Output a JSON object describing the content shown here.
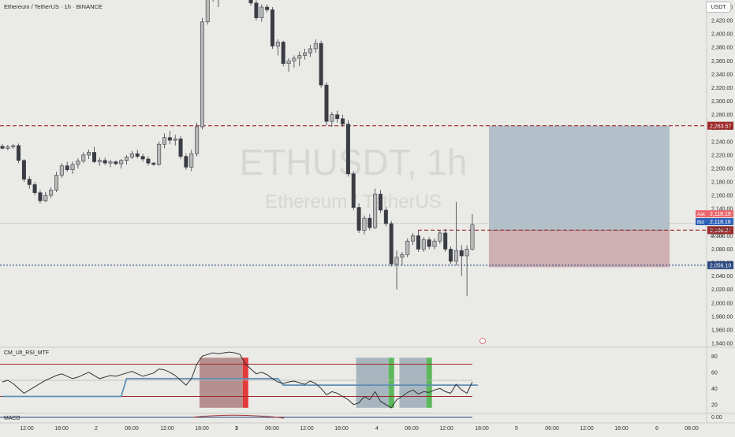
{
  "header": {
    "symbol_title": "Ethereum / TetherUS · 1h · BINANCE",
    "currency": "USDT"
  },
  "watermark": {
    "main": "ETHUSDT, 1h",
    "sub": "Ethereum / TetherUS"
  },
  "colors": {
    "background": "#eaeae7",
    "candle_up": "#b9b9b9",
    "candle_down": "#3a3d44",
    "resistance_line": "#9e2a2a",
    "support_line": "#2c4a82",
    "target_zone": "#a9b9c3",
    "stop_zone": "#c9a5a8",
    "ask": "#e8676c",
    "bid": "#2e62b8"
  },
  "chart_data": [
    {
      "type": "candlestick",
      "title": "Ethereum / TetherUS · 1h · BINANCE",
      "y_axis": {
        "ticks": [
          1940,
          1960,
          1980,
          2000,
          2020,
          2040,
          2060,
          2080,
          2100,
          2120,
          2140,
          2160,
          2180,
          2200,
          2220,
          2240,
          2260,
          2280,
          2300,
          2320,
          2340,
          2360,
          2380,
          2400,
          2420,
          2440
        ],
        "tick_labels": [
          "1,940.00",
          "1,960.00",
          "1,980.00",
          "2,000.00",
          "2,020.00",
          "2,040.00",
          "2,060.00",
          "2,080.00",
          "2,100.00",
          "2,120.00",
          "2,140.00",
          "2,160.00",
          "2,180.00",
          "2,200.00",
          "2,220.00",
          "2,240.00",
          "2,260.00",
          "2,280.00",
          "2,300.00",
          "2,320.00",
          "2,340.00",
          "2,360.00",
          "2,380.00",
          "2,400.00",
          "2,420.00",
          "2,440.00"
        ],
        "ylim": [
          1935,
          2455
        ]
      },
      "x_axis": {
        "labels": [
          "12:00",
          "18:00",
          "2",
          "06:00",
          "12:00",
          "18:00",
          "3",
          "06:00",
          "12:00",
          "18:00",
          "4",
          "06:00",
          "12:00",
          "18:00",
          "5",
          "06:00",
          "12:00",
          "18:00",
          "6",
          "06:00"
        ]
      },
      "series": [
        {
          "name": "ETHUSDT",
          "ohlc": [
            [
              2233,
              2236,
              2228,
              2230
            ],
            [
              2230,
              2235,
              2227,
              2232
            ],
            [
              2232,
              2236,
              2229,
              2234
            ],
            [
              2234,
              2237,
              2208,
              2212
            ],
            [
              2212,
              2214,
              2180,
              2184
            ],
            [
              2184,
              2188,
              2170,
              2176
            ],
            [
              2176,
              2180,
              2160,
              2164
            ],
            [
              2164,
              2168,
              2148,
              2152
            ],
            [
              2152,
              2165,
              2150,
              2160
            ],
            [
              2160,
              2172,
              2156,
              2168
            ],
            [
              2168,
              2195,
              2165,
              2190
            ],
            [
              2190,
              2208,
              2186,
              2204
            ],
            [
              2204,
              2210,
              2195,
              2198
            ],
            [
              2198,
              2210,
              2192,
              2206
            ],
            [
              2206,
              2215,
              2200,
              2211
            ],
            [
              2211,
              2224,
              2208,
              2220
            ],
            [
              2220,
              2228,
              2214,
              2224
            ],
            [
              2224,
              2232,
              2208,
              2210
            ],
            [
              2210,
              2216,
              2204,
              2212
            ],
            [
              2212,
              2216,
              2205,
              2208
            ],
            [
              2208,
              2213,
              2202,
              2210
            ],
            [
              2210,
              2212,
              2205,
              2207
            ],
            [
              2207,
              2214,
              2200,
              2212
            ],
            [
              2212,
              2220,
              2206,
              2217
            ],
            [
              2217,
              2226,
              2214,
              2222
            ],
            [
              2222,
              2228,
              2215,
              2218
            ],
            [
              2218,
              2222,
              2210,
              2214
            ],
            [
              2214,
              2218,
              2204,
              2208
            ],
            [
              2208,
              2210,
              2204,
              2206
            ],
            [
              2206,
              2240,
              2204,
              2236
            ],
            [
              2236,
              2252,
              2230,
              2246
            ],
            [
              2246,
              2256,
              2236,
              2242
            ],
            [
              2242,
              2250,
              2234,
              2244
            ],
            [
              2244,
              2248,
              2214,
              2218
            ],
            [
              2218,
              2222,
              2198,
              2202
            ],
            [
              2202,
              2228,
              2196,
              2222
            ],
            [
              2222,
              2268,
              2218,
              2262
            ],
            [
              2262,
              2424,
              2258,
              2418
            ],
            [
              2418,
              2470,
              2414,
              2462
            ],
            [
              2462,
              2478,
              2448,
              2456
            ],
            [
              2456,
              2470,
              2440,
              2468
            ],
            [
              2468,
              2478,
              2460,
              2474
            ],
            [
              2474,
              2482,
              2466,
              2470
            ],
            [
              2470,
              2476,
              2460,
              2464
            ],
            [
              2464,
              2472,
              2458,
              2468
            ],
            [
              2468,
              2474,
              2452,
              2456
            ],
            [
              2456,
              2460,
              2442,
              2446
            ],
            [
              2446,
              2450,
              2420,
              2424
            ],
            [
              2424,
              2444,
              2418,
              2440
            ],
            [
              2440,
              2444,
              2432,
              2436
            ],
            [
              2436,
              2440,
              2378,
              2382
            ],
            [
              2382,
              2392,
              2368,
              2388
            ],
            [
              2388,
              2390,
              2352,
              2356
            ],
            [
              2356,
              2364,
              2344,
              2360
            ],
            [
              2360,
              2368,
              2350,
              2364
            ],
            [
              2364,
              2374,
              2352,
              2368
            ],
            [
              2368,
              2378,
              2362,
              2372
            ],
            [
              2372,
              2384,
              2366,
              2378
            ],
            [
              2378,
              2392,
              2372,
              2386
            ],
            [
              2386,
              2390,
              2320,
              2324
            ],
            [
              2324,
              2328,
              2264,
              2270
            ],
            [
              2270,
              2284,
              2262,
              2280
            ],
            [
              2280,
              2286,
              2268,
              2274
            ],
            [
              2274,
              2280,
              2262,
              2266
            ],
            [
              2266,
              2272,
              2188,
              2192
            ],
            [
              2192,
              2196,
              2138,
              2142
            ],
            [
              2142,
              2148,
              2104,
              2108
            ],
            [
              2108,
              2130,
              2102,
              2126
            ],
            [
              2126,
              2132,
              2108,
              2112
            ],
            [
              2112,
              2170,
              2110,
              2162
            ],
            [
              2162,
              2168,
              2134,
              2138
            ],
            [
              2138,
              2142,
              2114,
              2118
            ],
            [
              2118,
              2122,
              2054,
              2058
            ],
            [
              2058,
              2078,
              2020,
              2068
            ],
            [
              2068,
              2076,
              2056,
              2072
            ],
            [
              2072,
              2096,
              2068,
              2092
            ],
            [
              2092,
              2104,
              2086,
              2100
            ],
            [
              2100,
              2108,
              2076,
              2080
            ],
            [
              2080,
              2098,
              2076,
              2094
            ],
            [
              2094,
              2098,
              2080,
              2084
            ],
            [
              2084,
              2096,
              2080,
              2092
            ],
            [
              2092,
              2108,
              2088,
              2104
            ],
            [
              2104,
              2110,
              2076,
              2080
            ],
            [
              2080,
              2084,
              2058,
              2062
            ],
            [
              2062,
              2150,
              2056,
              2078
            ],
            [
              2078,
              2086,
              2040,
              2070
            ],
            [
              2070,
              2086,
              2010,
              2080
            ],
            [
              2080,
              2132,
              2078,
              2116
            ]
          ]
        }
      ],
      "horizontal_lines": [
        {
          "price": 2263.57,
          "label": "2,263.57",
          "style": "dashed",
          "color": "#9e2a2a"
        },
        {
          "price": 2108.27,
          "label": "2,108.27",
          "style": "dashed",
          "color": "#9e2a2a"
        },
        {
          "price": 2056.1,
          "label": "2,056.10",
          "style": "dotted",
          "color": "#2c4a82"
        }
      ],
      "position": {
        "type": "long",
        "entry": 2108.27,
        "target": 2263.57,
        "stop": 2053
      },
      "price_labels": {
        "ask_label": "Ask",
        "ask": "2,118.19",
        "bid_label": "Bid",
        "bid": "2,118.18",
        "last": "2,118.15",
        "countdown": "30:53"
      },
      "grid": false,
      "legend": "none"
    },
    {
      "type": "line",
      "title": "CM_Ult_RSI_MTF",
      "y_axis": {
        "ticks": [
          20,
          40,
          60,
          80
        ],
        "tick_labels": [
          "20",
          "40",
          "60",
          "80"
        ],
        "ylim": [
          10,
          90
        ]
      },
      "levels": [
        70,
        30,
        50
      ],
      "series": [
        {
          "values": [
            48,
            50,
            46,
            40,
            34,
            38,
            42,
            46,
            50,
            53,
            56,
            58,
            55,
            52,
            54,
            57,
            60,
            56,
            52,
            54,
            56,
            55,
            57,
            59,
            61,
            58,
            55,
            57,
            59,
            64,
            63,
            60,
            56,
            50,
            44,
            52,
            70,
            80,
            82,
            84,
            83,
            84,
            85,
            84,
            82,
            70,
            64,
            58,
            60,
            57,
            52,
            48,
            46,
            48,
            49,
            47,
            45,
            49,
            46,
            40,
            32,
            36,
            34,
            30,
            26,
            20,
            22,
            30,
            26,
            36,
            24,
            20,
            16,
            26,
            30,
            35,
            38,
            33,
            36,
            35,
            38,
            40,
            36,
            34,
            45,
            38,
            34,
            48
          ]
        },
        {
          "values": [
            27,
            27,
            27,
            27,
            27,
            27,
            27,
            27,
            27,
            27,
            27,
            27,
            27,
            27,
            27,
            27,
            27,
            27,
            27,
            27,
            27,
            27,
            27,
            27,
            27,
            27,
            27,
            27,
            27,
            27,
            27,
            27,
            27,
            27,
            27,
            27,
            27,
            27,
            27,
            27,
            27,
            27,
            27,
            27,
            27,
            27,
            27,
            27,
            27,
            27,
            27,
            27,
            27,
            27,
            27,
            27,
            27,
            27,
            27,
            27,
            27,
            27,
            27,
            27,
            27,
            27,
            27,
            27,
            27,
            27,
            27,
            27,
            27,
            27,
            27,
            27,
            27,
            27,
            27,
            27,
            27,
            27,
            27,
            27,
            27,
            27,
            27,
            27
          ]
        }
      ],
      "mtf_line": [
        30,
        30,
        30,
        30,
        30,
        30,
        30,
        30,
        30,
        30,
        30,
        30,
        30,
        30,
        30,
        30,
        30,
        30,
        30,
        30,
        30,
        30,
        30,
        30,
        30,
        30,
        30,
        30,
        30,
        30,
        30,
        30,
        30,
        30,
        30,
        30,
        30,
        30,
        30,
        30,
        30,
        30,
        30,
        30,
        30,
        30,
        30,
        30,
        30,
        30,
        30,
        30,
        30,
        30,
        30,
        30,
        30,
        30,
        30,
        30,
        30,
        30,
        30,
        30,
        30,
        30,
        30,
        30,
        30,
        30,
        30,
        30,
        30,
        30,
        30,
        30,
        30,
        30,
        30,
        30,
        30,
        30,
        30,
        30,
        30,
        30,
        30,
        30
      ],
      "mtf_values": [
        30,
        30,
        30,
        30,
        30,
        30,
        30,
        30,
        30,
        30,
        30,
        30,
        30,
        30,
        30,
        30,
        30,
        30,
        30,
        30,
        30,
        30,
        30,
        52,
        52,
        52,
        52,
        52,
        52,
        52,
        52,
        52,
        52,
        52,
        52,
        52,
        52,
        52,
        52,
        52,
        52,
        52,
        52,
        52,
        52,
        52,
        52,
        52,
        52,
        52,
        52,
        52,
        44,
        44,
        44,
        44,
        44,
        44,
        44,
        44,
        44,
        44,
        44,
        44,
        44,
        44,
        44,
        44,
        44,
        44,
        44,
        44,
        44,
        44,
        44,
        44,
        44,
        44,
        44,
        44,
        44,
        44,
        44,
        44,
        44,
        44,
        44,
        44,
        44
      ],
      "shaded_ranges": [
        {
          "from": 36.5,
          "to": 44.5,
          "color": "#a9797b"
        },
        {
          "from": 65.5,
          "to": 71.5,
          "color": "#96a9b4"
        },
        {
          "from": 73.5,
          "to": 78.5,
          "color": "#96a9b4"
        }
      ],
      "signal_bars": [
        {
          "at": 44.5,
          "color": "#e33b3b"
        },
        {
          "at": 71.5,
          "color": "#5cb85c"
        },
        {
          "at": 78.5,
          "color": "#5cb85c"
        }
      ]
    },
    {
      "type": "line",
      "title": "MACD",
      "y_axis": {
        "ticks": [
          0
        ],
        "tick_labels": [
          "0.00"
        ],
        "ylim": [
          -1,
          1
        ]
      }
    }
  ]
}
